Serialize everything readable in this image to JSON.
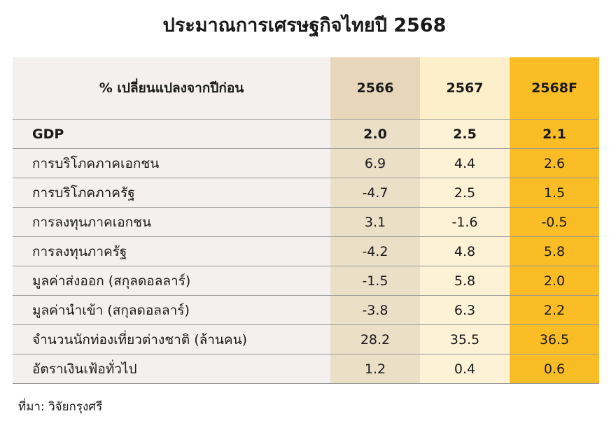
{
  "title": "ประมาณการเศรษฐกิจไทยปี 2568",
  "table": {
    "header": [
      "% เปลี่ยนแปลงจากปีก่อน",
      "2566",
      "2567",
      "2568F"
    ],
    "rows": [
      [
        "GDP",
        "2.0",
        "2.5",
        "2.1"
      ],
      [
        "การบริโภคภาคเอกชน",
        "6.9",
        "4.4",
        "2.6"
      ],
      [
        "การบริโภคภาครัฐ",
        "-4.7",
        "2.5",
        "1.5"
      ],
      [
        "การลงทุนภาคเอกชน",
        "3.1",
        "-1.6",
        "-0.5"
      ],
      [
        "การลงทุนภาครัฐ",
        "-4.2",
        "4.8",
        "5.8"
      ],
      [
        "มูลค่าส่งออก (สกุลดอลลาร์)",
        "-1.5",
        "5.8",
        "2.0"
      ],
      [
        "มูลค่านำเข้า (สกุลดอลลาร์)",
        "-3.8",
        "6.3",
        "2.2"
      ],
      [
        "จำนวนนักท่องเที่ยวต่างชาติ (ล้านคน)",
        "28.2",
        "35.5",
        "36.5"
      ],
      [
        "อัตราเงินเฟ้อทั่วไป",
        "1.2",
        "0.4",
        "0.6"
      ]
    ]
  },
  "source": "ที่มา: วิจัยกรุงศรี"
}
